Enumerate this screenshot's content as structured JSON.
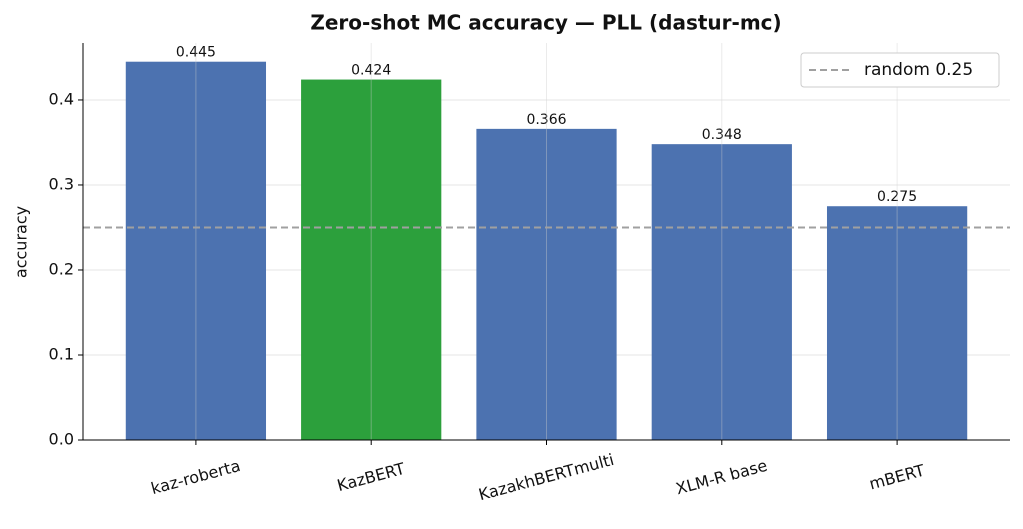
{
  "chart_data": {
    "type": "bar",
    "title": "Zero-shot MC accuracy — PLL (dastur-mc)",
    "ylabel": "accuracy",
    "categories": [
      "kaz-roberta",
      "KazBERT",
      "KazakhBERTmulti",
      "XLM-R base",
      "mBERT"
    ],
    "values": [
      0.445,
      0.424,
      0.366,
      0.348,
      0.275
    ],
    "colors": [
      "#4c72b0",
      "#2ca03c",
      "#4c72b0",
      "#4c72b0",
      "#4c72b0"
    ],
    "ylim": [
      0,
      0.467
    ],
    "yticks": [
      {
        "value": 0,
        "label": "0.0"
      },
      0.1,
      0.2,
      0.3,
      0.4
    ],
    "grid": true,
    "reference_line": {
      "value": 0.25,
      "label": "random 0.25",
      "color": "#a0a0a0"
    },
    "legend": "upper right"
  }
}
